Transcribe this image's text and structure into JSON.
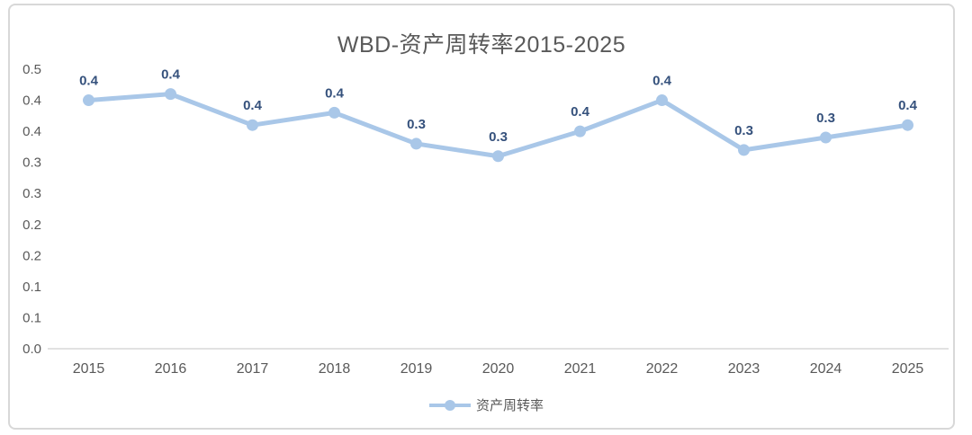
{
  "window": {
    "background": "#FFFFFF",
    "border_color": "#D8D8D8"
  },
  "chart_data": {
    "type": "line",
    "title": "WBD-资产周转率2015-2025",
    "categories": [
      "2015",
      "2016",
      "2017",
      "2018",
      "2019",
      "2020",
      "2021",
      "2022",
      "2023",
      "2024",
      "2025"
    ],
    "series": [
      {
        "name": "资产周转率",
        "values": [
          0.4,
          0.41,
          0.36,
          0.38,
          0.33,
          0.31,
          0.35,
          0.4,
          0.32,
          0.34,
          0.36
        ],
        "point_labels": [
          "0.4",
          "0.4",
          "0.4",
          "0.4",
          "0.3",
          "0.3",
          "0.4",
          "0.4",
          "0.3",
          "0.3",
          "0.4"
        ]
      }
    ],
    "xlabel": "",
    "ylabel": "",
    "y_axis": {
      "min": 0,
      "max": 0.45,
      "tick_step": 0.05,
      "tick_labels_top_to_bottom": [
        "0.5",
        "0.4",
        "0.4",
        "0.3",
        "0.3",
        "0.2",
        "0.2",
        "0.1",
        "0.1",
        "0.0"
      ]
    },
    "x_axis": {
      "tick_labels": [
        "2015",
        "2016",
        "2017",
        "2018",
        "2019",
        "2020",
        "2021",
        "2022",
        "2023",
        "2024",
        "2025"
      ]
    },
    "legend": {
      "position": "bottom-center",
      "entries": [
        "资产周转率"
      ]
    },
    "grid": false,
    "colors": {
      "series_line": "#A9C7E8",
      "series_marker": "#A9C7E8",
      "data_label": "#35517C",
      "axis_text": "#595959",
      "title": "#595959",
      "axis_line": "#D9D9D9"
    }
  }
}
